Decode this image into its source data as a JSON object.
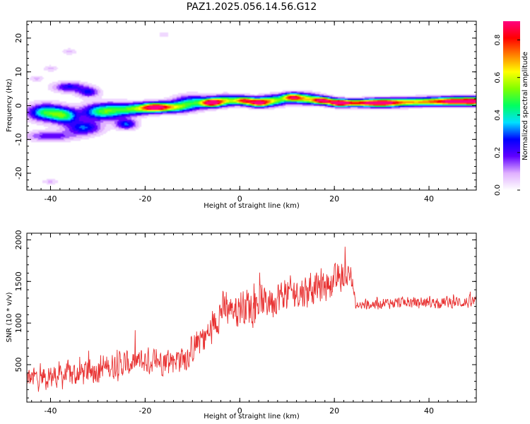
{
  "figure_title": "PAZ1.2025.056.14.56.G12",
  "chart_data": [
    {
      "type": "heatmap",
      "xlabel": "Height of straight line (km)",
      "ylabel": "Frequency (Hz)",
      "xlim": [
        -45,
        50
      ],
      "ylim": [
        -25,
        25
      ],
      "x_ticks": [
        -40,
        -20,
        0,
        20,
        40
      ],
      "y_ticks": [
        -20,
        -10,
        0,
        10,
        20
      ],
      "x_ticks_text": [
        "-40",
        "-20",
        "0",
        "20",
        "40"
      ],
      "y_ticks_text": [
        "-20",
        "-10",
        "0",
        "10",
        "20"
      ],
      "colorbar": {
        "label": "Normalized spectral amplitude",
        "range": [
          0,
          0.9
        ],
        "ticks": [
          0,
          0.2,
          0.4,
          0.6,
          0.8
        ],
        "ticks_text": [
          "0.0",
          "0.2",
          "0.4",
          "0.6",
          "0.8"
        ],
        "colors": [
          "#ffffff",
          "#e0b0ff",
          "#6000ff",
          "#0000ff",
          "#00e0ff",
          "#00ff60",
          "#80ff00",
          "#ffff00",
          "#ff8000",
          "#ff0000",
          "#ff0080"
        ]
      },
      "blobs": [
        {
          "x": -41,
          "f": -2,
          "sx": 2.5,
          "sf": 1.6,
          "a": 0.45
        },
        {
          "x": -37,
          "f": -3,
          "sx": 2.0,
          "sf": 1.5,
          "a": 0.4
        },
        {
          "x": -40,
          "f": -9,
          "sx": 3.5,
          "sf": 1.0,
          "a": 0.2
        },
        {
          "x": -36,
          "f": 5.5,
          "sx": 2.2,
          "sf": 1.0,
          "a": 0.25
        },
        {
          "x": -33,
          "f": -6.5,
          "sx": 2.5,
          "sf": 1.4,
          "a": 0.3
        },
        {
          "x": -32,
          "f": 4.0,
          "sx": 1.5,
          "sf": 1.0,
          "a": 0.25
        },
        {
          "x": -30,
          "f": -2,
          "sx": 2.5,
          "sf": 1.6,
          "a": 0.25
        },
        {
          "x": -27,
          "f": -1.5,
          "sx": 3.0,
          "sf": 1.5,
          "a": 0.35
        },
        {
          "x": -24,
          "f": -5.5,
          "sx": 1.5,
          "sf": 1.0,
          "a": 0.3
        },
        {
          "x": -22,
          "f": -1,
          "sx": 2.5,
          "sf": 1.1,
          "a": 0.4
        },
        {
          "x": -18,
          "f": -0.5,
          "sx": 2.0,
          "sf": 0.9,
          "a": 0.8
        },
        {
          "x": -14,
          "f": -0.5,
          "sx": 2.5,
          "sf": 1.0,
          "a": 0.5
        },
        {
          "x": -10,
          "f": 1.0,
          "sx": 2.5,
          "sf": 1.3,
          "a": 0.4
        },
        {
          "x": -6,
          "f": 0.8,
          "sx": 1.5,
          "sf": 0.8,
          "a": 0.85
        },
        {
          "x": -3,
          "f": 1.5,
          "sx": 2.0,
          "sf": 1.0,
          "a": 0.55
        },
        {
          "x": 1,
          "f": 1.5,
          "sx": 1.5,
          "sf": 0.8,
          "a": 0.7
        },
        {
          "x": 4,
          "f": 0.8,
          "sx": 1.5,
          "sf": 0.8,
          "a": 0.8
        },
        {
          "x": 7,
          "f": 1.5,
          "sx": 2.0,
          "sf": 1.0,
          "a": 0.55
        },
        {
          "x": 11,
          "f": 2.5,
          "sx": 1.5,
          "sf": 0.8,
          "a": 0.7
        },
        {
          "x": 14,
          "f": 2.0,
          "sx": 2.0,
          "sf": 1.0,
          "a": 0.55
        },
        {
          "x": 17.5,
          "f": 1.5,
          "sx": 1.5,
          "sf": 0.7,
          "a": 0.85
        },
        {
          "x": 21,
          "f": 0.8,
          "sx": 1.5,
          "sf": 0.7,
          "a": 0.85
        },
        {
          "x": 25,
          "f": 0.8,
          "sx": 3.0,
          "sf": 0.7,
          "a": 0.7
        },
        {
          "x": 30,
          "f": 0.8,
          "sx": 2.5,
          "sf": 0.8,
          "a": 0.75
        },
        {
          "x": 35,
          "f": 1.0,
          "sx": 3.0,
          "sf": 0.8,
          "a": 0.55
        },
        {
          "x": 41,
          "f": 1.2,
          "sx": 3.0,
          "sf": 0.8,
          "a": 0.6
        },
        {
          "x": 46,
          "f": 1.3,
          "sx": 2.5,
          "sf": 0.8,
          "a": 0.8
        },
        {
          "x": 49.5,
          "f": 1.3,
          "sx": 1.5,
          "sf": 0.8,
          "a": 0.75
        },
        {
          "x": -43,
          "f": 8.0,
          "sx": 1.0,
          "sf": 0.6,
          "a": 0.08
        },
        {
          "x": -40,
          "f": 11.0,
          "sx": 1.0,
          "sf": 0.6,
          "a": 0.08
        },
        {
          "x": -36,
          "f": 16.0,
          "sx": 1.0,
          "sf": 0.6,
          "a": 0.08
        },
        {
          "x": -40,
          "f": -22.5,
          "sx": 1.2,
          "sf": 0.5,
          "a": 0.08
        },
        {
          "x": -16,
          "f": 21.0,
          "sx": 0.8,
          "sf": 0.6,
          "a": 0.06
        }
      ]
    },
    {
      "type": "line",
      "xlabel": "Height of straight line (km)",
      "ylabel": "SNR (10 * v/v)",
      "xlim": [
        -45,
        50
      ],
      "ylim": [
        50,
        2080
      ],
      "x_ticks": [
        -40,
        -20,
        0,
        20,
        40
      ],
      "y_ticks": [
        500,
        1000,
        1500,
        2000
      ],
      "x_ticks_text": [
        "-40",
        "-20",
        "0",
        "20",
        "40"
      ],
      "y_ticks_text": [
        "500",
        "1000",
        "1500",
        "2000"
      ],
      "color": "#e83030",
      "n_points": 1200,
      "trend": [
        {
          "x": -45,
          "y": 330
        },
        {
          "x": -40,
          "y": 360
        },
        {
          "x": -35,
          "y": 380
        },
        {
          "x": -30,
          "y": 450
        },
        {
          "x": -25,
          "y": 500
        },
        {
          "x": -20,
          "y": 540
        },
        {
          "x": -15,
          "y": 560
        },
        {
          "x": -11,
          "y": 600
        },
        {
          "x": -9,
          "y": 760
        },
        {
          "x": -6,
          "y": 900
        },
        {
          "x": -4,
          "y": 1150
        },
        {
          "x": 0,
          "y": 1200
        },
        {
          "x": 5,
          "y": 1250
        },
        {
          "x": 10,
          "y": 1350
        },
        {
          "x": 15,
          "y": 1400
        },
        {
          "x": 20,
          "y": 1500
        },
        {
          "x": 23.5,
          "y": 1600
        },
        {
          "x": 24.5,
          "y": 1200
        },
        {
          "x": 30,
          "y": 1240
        },
        {
          "x": 40,
          "y": 1250
        },
        {
          "x": 50,
          "y": 1250
        }
      ],
      "noise": [
        {
          "x": -45,
          "amp": 220
        },
        {
          "x": -10,
          "amp": 250
        },
        {
          "x": 0,
          "amp": 320
        },
        {
          "x": 23.5,
          "amp": 260
        },
        {
          "x": 24.5,
          "amp": 90
        },
        {
          "x": 50,
          "amp": 110
        }
      ]
    }
  ]
}
